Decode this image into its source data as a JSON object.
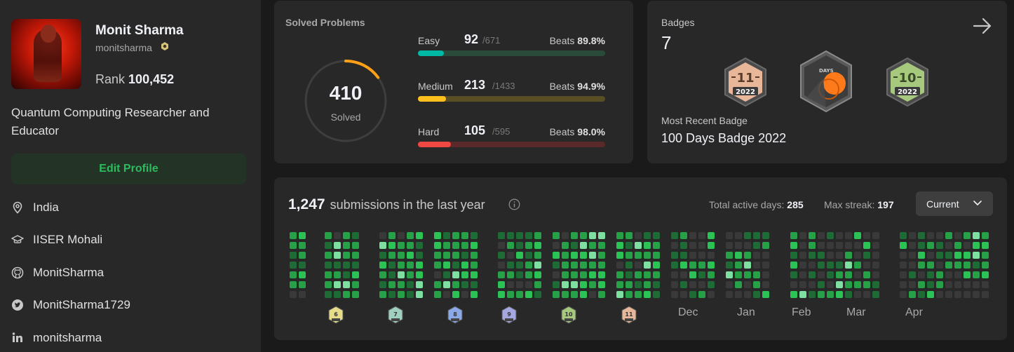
{
  "profile": {
    "name": "Monit Sharma",
    "username": "monitsharma",
    "rank_label": "Rank",
    "rank_value": "100,452",
    "bio": "Quantum Computing Researcher and Educator",
    "edit_label": "Edit Profile",
    "location": "India",
    "school": "IISER Mohali",
    "github": "MonitSharma",
    "twitter": "MonitSharma1729",
    "linkedin": "monitsharma"
  },
  "solved": {
    "title": "Solved Problems",
    "total": "410",
    "total_label": "Solved",
    "progress_fraction": 0.15,
    "rows": [
      {
        "label": "Easy",
        "count": "92",
        "total": "/671",
        "beats_label": "Beats",
        "beats": "89.8%",
        "fraction": 0.137,
        "color": "#00b8a3",
        "track": "#2a4a3a"
      },
      {
        "label": "Medium",
        "count": "213",
        "total": "/1433",
        "beats_label": "Beats",
        "beats": "94.9%",
        "fraction": 0.149,
        "color": "#ffc01e",
        "track": "#5a4e25"
      },
      {
        "label": "Hard",
        "count": "105",
        "total": "/595",
        "beats_label": "Beats",
        "beats": "98.0%",
        "fraction": 0.176,
        "color": "#ef4743",
        "track": "#5a2a2a"
      }
    ]
  },
  "badges": {
    "title": "Badges",
    "count": "7",
    "items": [
      {
        "name": "badge-11-2022",
        "num": "11",
        "year": "2022",
        "color": "#e8b79a"
      },
      {
        "name": "badge-100-days-2022",
        "label": "DAYS"
      },
      {
        "name": "badge-10-2022",
        "num": "10",
        "year": "2022",
        "color": "#a6c97e"
      }
    ],
    "recent_label": "Most Recent Badge",
    "recent_name": "100 Days Badge 2022"
  },
  "submissions": {
    "count": "1,247",
    "label": "submissions in the last year",
    "active_label": "Total active days:",
    "active_value": "285",
    "streak_label": "Max streak:",
    "streak_value": "197",
    "select_value": "Current",
    "months": [
      "Dec",
      "Jan",
      "Feb",
      "Mar",
      "Apr"
    ],
    "month_badges": [
      {
        "num": "6",
        "color": "#e6dc8a"
      },
      {
        "num": "7",
        "color": "#9fcfbf"
      },
      {
        "num": "8",
        "color": "#8aa9e6"
      },
      {
        "num": "9",
        "color": "#a5a8e0"
      },
      {
        "num": "10",
        "color": "#a6c97e"
      },
      {
        "num": "11",
        "color": "#e8b79a"
      }
    ],
    "colors": {
      "empty": "#393939",
      "l1": "#1e6b36",
      "l2": "#26a148",
      "l3": "#2cc356",
      "l4": "#7ee0a0"
    }
  }
}
